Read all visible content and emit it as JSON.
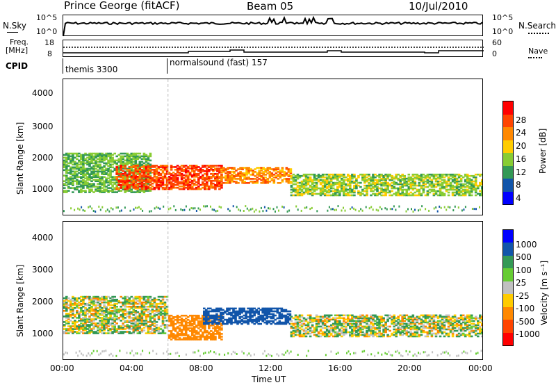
{
  "header": {
    "station": "Prince George (fitACF)",
    "beam": "Beam 05",
    "date": "10/Jul/2010"
  },
  "top_labels": {
    "nsky": "N.Sky",
    "nsearch": "N.Search",
    "nsky_ticks": [
      "10^5",
      "10^0"
    ],
    "nsearch_ticks": [
      "10^5",
      "10^0"
    ],
    "freq": "Freq.",
    "freq_unit": "[MHz]",
    "freq_ticks": [
      "18",
      "8"
    ],
    "nave": "Nave",
    "nave_ticks": [
      "60",
      "0"
    ],
    "cpid": "CPID",
    "cpid_segments": [
      "themis 3300",
      "normalsound (fast) 157"
    ]
  },
  "axes": {
    "ylabel": "Slant Range [km]",
    "yticks": [
      "4000",
      "3000",
      "2000",
      "1000"
    ],
    "xticks": [
      "00:00",
      "04:00",
      "08:00",
      "12:00",
      "16:00",
      "20:00",
      "00:00"
    ],
    "xlabel": "Time UT"
  },
  "power_scale": {
    "label": "Power [dB]",
    "ticks": [
      "28",
      "24",
      "20",
      "16",
      "12",
      "8",
      "4"
    ],
    "colors": [
      "#ff0000",
      "#ff4400",
      "#ff8800",
      "#ffcc00",
      "#88cc33",
      "#339955",
      "#1155aa",
      "#0000ff"
    ]
  },
  "velocity_scale": {
    "label": "Velocity [m s⁻¹]",
    "ticks": [
      "1000",
      "500",
      "100",
      "25",
      "-25",
      "-100",
      "-500",
      "-1000"
    ],
    "colors": [
      "#0000ff",
      "#1155aa",
      "#339955",
      "#66cc33",
      "#c0c0c0",
      "#ffcc00",
      "#ff8800",
      "#ff4400",
      "#ff0000"
    ]
  },
  "chart_data": {
    "type": "heatmap",
    "panels": [
      "power",
      "velocity"
    ],
    "x_range_hours_ut": [
      0,
      24
    ],
    "y_range_km": [
      180,
      4600
    ],
    "power_regions": [
      {
        "t": [
          0,
          5
        ],
        "r": [
          900,
          2200
        ],
        "db": 12
      },
      {
        "t": [
          3,
          9
        ],
        "r": [
          1000,
          1800
        ],
        "db": 26
      },
      {
        "t": [
          9,
          13
        ],
        "r": [
          1200,
          1700
        ],
        "db": 22
      },
      {
        "t": [
          13,
          24
        ],
        "r": [
          800,
          1500
        ],
        "db": 14
      }
    ],
    "velocity_regions": [
      {
        "t": [
          0,
          6
        ],
        "r": [
          1000,
          2200
        ],
        "v": 0
      },
      {
        "t": [
          6,
          9
        ],
        "r": [
          800,
          1600
        ],
        "v": -300
      },
      {
        "t": [
          8,
          13
        ],
        "r": [
          1300,
          1800
        ],
        "v": 600
      },
      {
        "t": [
          13,
          24
        ],
        "r": [
          900,
          1600
        ],
        "v": 0
      }
    ]
  }
}
